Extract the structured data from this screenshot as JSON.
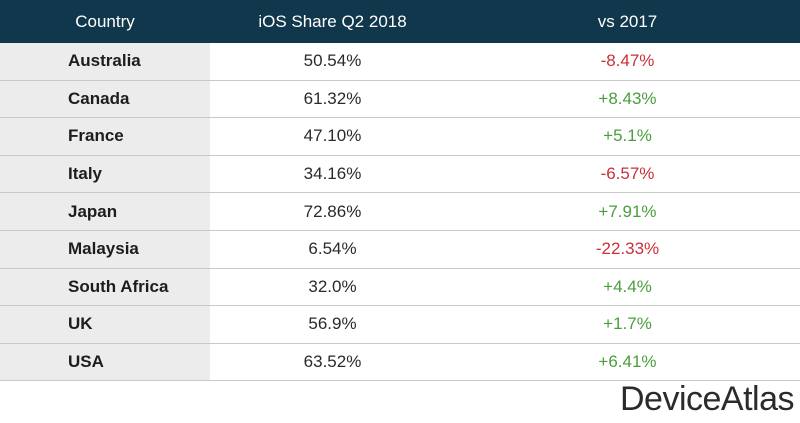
{
  "chart_data": {
    "type": "table",
    "columns": [
      "Country",
      "iOS Share Q2 2018",
      "vs 2017"
    ],
    "rows": [
      {
        "country": "Australia",
        "share": "50.54%",
        "change": "-8.47%",
        "trend": "neg"
      },
      {
        "country": "Canada",
        "share": "61.32%",
        "change": "+8.43%",
        "trend": "pos"
      },
      {
        "country": "France",
        "share": "47.10%",
        "change": "+5.1%",
        "trend": "pos"
      },
      {
        "country": "Italy",
        "share": "34.16%",
        "change": "-6.57%",
        "trend": "neg"
      },
      {
        "country": "Japan",
        "share": "72.86%",
        "change": "+7.91%",
        "trend": "pos"
      },
      {
        "country": "Malaysia",
        "share": "6.54%",
        "change": "-22.33%",
        "trend": "neg"
      },
      {
        "country": "South Africa",
        "share": "32.0%",
        "change": "+4.4%",
        "trend": "pos"
      },
      {
        "country": "UK",
        "share": "56.9%",
        "change": "+1.7%",
        "trend": "pos"
      },
      {
        "country": "USA",
        "share": "63.52%",
        "change": "+6.41%",
        "trend": "pos"
      }
    ],
    "values": [
      50.54,
      61.32,
      47.1,
      34.16,
      72.86,
      6.54,
      32.0,
      56.9,
      63.52
    ],
    "changes": [
      -8.47,
      8.43,
      5.1,
      -6.57,
      7.91,
      -22.33,
      4.4,
      1.7,
      6.41
    ]
  },
  "logo": {
    "text": "DeviceAtlas"
  },
  "colors": {
    "header_bg": "#10374b",
    "negative": "#c8303a",
    "positive": "#4a9e3c"
  }
}
